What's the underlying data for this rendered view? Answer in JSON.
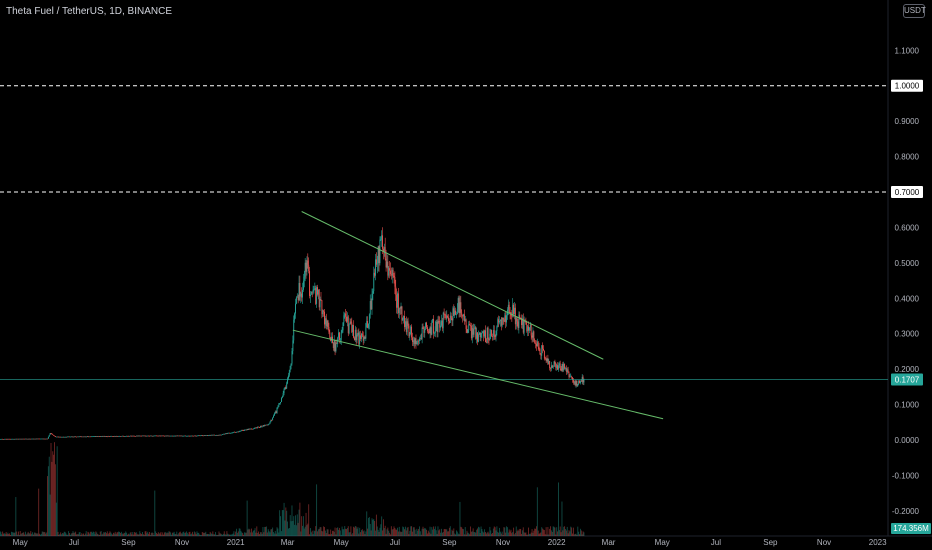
{
  "header": {
    "title": "Theta Fuel / TetherUS, 1D, BINANCE",
    "currency": "USDT"
  },
  "colors": {
    "background": "#000000",
    "up": "#26a69a",
    "down": "#ef5350",
    "trendline": "#66bb6a",
    "level_line": "#ffffff",
    "price_line": "#26a69a",
    "axis_text": "#b2b5be"
  },
  "chart_data": {
    "type": "candlestick",
    "title": "Theta Fuel / TetherUS, 1D, BINANCE",
    "y_axis": {
      "scale": "linear",
      "ticks": [
        "1.1000",
        "1.0000",
        "0.9000",
        "0.8000",
        "0.7000",
        "0.6000",
        "0.5000",
        "0.4000",
        "0.3000",
        "0.2000",
        "0.1000",
        "0.0000",
        "-0.1000",
        "-0.2000"
      ],
      "tick_values": [
        1.1,
        1.0,
        0.9,
        0.8,
        0.7,
        0.6,
        0.5,
        0.4,
        0.3,
        0.2,
        0.1,
        0.0,
        -0.1,
        -0.2
      ],
      "range": [
        -0.22,
        1.16
      ]
    },
    "x_axis": {
      "ticks": [
        "May",
        "Jul",
        "Sep",
        "Nov",
        "2021",
        "Mar",
        "May",
        "Jul",
        "Sep",
        "Nov",
        "2022",
        "Mar",
        "May",
        "Jul",
        "Sep",
        "Nov",
        "2023"
      ],
      "tick_dates": [
        "2020-05-01",
        "2020-07-01",
        "2020-09-01",
        "2020-11-01",
        "2021-01-01",
        "2021-03-01",
        "2021-05-01",
        "2021-07-01",
        "2021-09-01",
        "2021-11-01",
        "2022-01-01",
        "2022-03-01",
        "2022-05-01",
        "2022-07-01",
        "2022-09-01",
        "2022-11-01",
        "2023-01-01"
      ],
      "range": [
        "2020-04-08",
        "2023-01-15"
      ]
    },
    "grid": false,
    "price_profile": [
      [
        "2020-04-08",
        0.003
      ],
      [
        "2020-06-01",
        0.004
      ],
      [
        "2020-06-04",
        0.02
      ],
      [
        "2020-06-10",
        0.009
      ],
      [
        "2020-07-15",
        0.01
      ],
      [
        "2020-09-15",
        0.012
      ],
      [
        "2020-11-15",
        0.012
      ],
      [
        "2020-12-15",
        0.015
      ],
      [
        "2021-01-05",
        0.025
      ],
      [
        "2021-01-25",
        0.035
      ],
      [
        "2021-02-08",
        0.045
      ],
      [
        "2021-02-15",
        0.075
      ],
      [
        "2021-02-22",
        0.12
      ],
      [
        "2021-02-28",
        0.15
      ],
      [
        "2021-03-05",
        0.22
      ],
      [
        "2021-03-09",
        0.38
      ],
      [
        "2021-03-12",
        0.43
      ],
      [
        "2021-03-17",
        0.4
      ],
      [
        "2021-03-22",
        0.5
      ],
      [
        "2021-03-27",
        0.42
      ],
      [
        "2021-04-05",
        0.4
      ],
      [
        "2021-04-15",
        0.32
      ],
      [
        "2021-04-25",
        0.26
      ],
      [
        "2021-05-05",
        0.34
      ],
      [
        "2021-05-15",
        0.3
      ],
      [
        "2021-05-25",
        0.28
      ],
      [
        "2021-06-02",
        0.35
      ],
      [
        "2021-06-10",
        0.5
      ],
      [
        "2021-06-15",
        0.55
      ],
      [
        "2021-06-20",
        0.52
      ],
      [
        "2021-06-28",
        0.45
      ],
      [
        "2021-07-05",
        0.38
      ],
      [
        "2021-07-15",
        0.32
      ],
      [
        "2021-07-25",
        0.28
      ],
      [
        "2021-08-05",
        0.31
      ],
      [
        "2021-08-20",
        0.33
      ],
      [
        "2021-09-05",
        0.35
      ],
      [
        "2021-09-12",
        0.38
      ],
      [
        "2021-09-20",
        0.32
      ],
      [
        "2021-10-05",
        0.29
      ],
      [
        "2021-10-20",
        0.3
      ],
      [
        "2021-11-02",
        0.35
      ],
      [
        "2021-11-10",
        0.37
      ],
      [
        "2021-11-20",
        0.33
      ],
      [
        "2021-12-05",
        0.3
      ],
      [
        "2021-12-15",
        0.25
      ],
      [
        "2021-12-25",
        0.21
      ],
      [
        "2022-01-05",
        0.21
      ],
      [
        "2022-01-15",
        0.19
      ],
      [
        "2022-01-22",
        0.16
      ],
      [
        "2022-01-28",
        0.17
      ],
      [
        "2022-02-01",
        0.17
      ]
    ],
    "trendlines": [
      {
        "start": {
          "x": "2021-03-17",
          "y": 0.645
        },
        "end": {
          "x": "2022-02-23",
          "y": 0.228
        }
      },
      {
        "start": {
          "x": "2021-03-07",
          "y": 0.31
        },
        "end": {
          "x": "2022-05-02",
          "y": 0.06
        }
      }
    ],
    "horizontal_levels": [
      1.0,
      0.7
    ],
    "last_price": 0.1707,
    "volume_indicator_label": "174.356M"
  },
  "y_axis_labels": {
    "level_1": "1.0000",
    "level_2": "0.7000",
    "last_price": "0.1707",
    "volume": "174.356M"
  }
}
